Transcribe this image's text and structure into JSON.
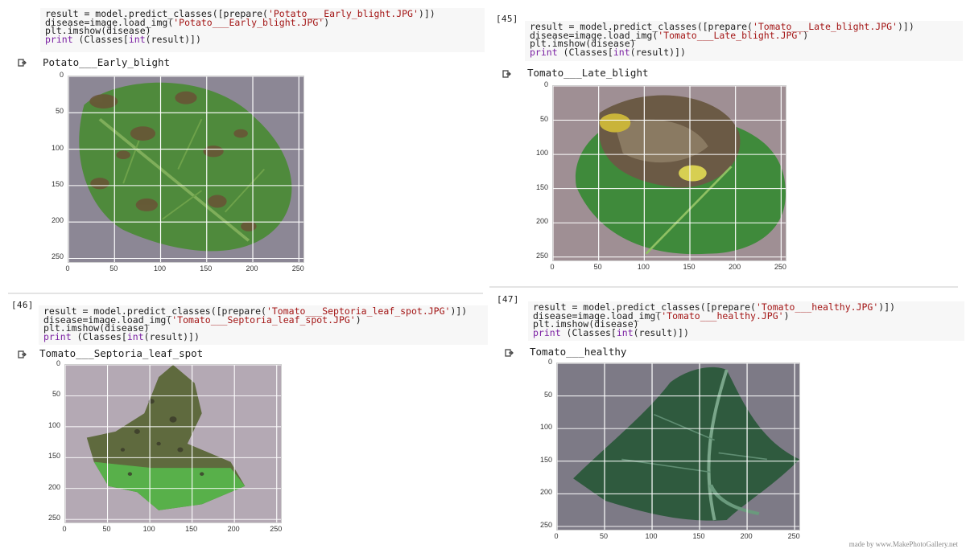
{
  "cells": [
    {
      "prompt": "",
      "code": [
        [
          {
            "t": "result = model.predict_classes([prepare("
          },
          {
            "t": "'Potato___Early_blight.JPG'",
            "c": "s"
          },
          {
            "t": ")])"
          }
        ],
        [
          {
            "t": "disease=image.load_img("
          },
          {
            "t": "'Potato___Early_blight.JPG'",
            "c": "s"
          },
          {
            "t": ")"
          }
        ],
        [
          {
            "t": "plt.imshow(disease)"
          }
        ],
        [
          {
            "t": "print",
            "c": "k"
          },
          {
            "t": " (Classes["
          },
          {
            "t": "int",
            "c": "k"
          },
          {
            "t": "(result)])"
          }
        ]
      ],
      "output": "Potato___Early_blight",
      "leaf": "potato-early-blight"
    },
    {
      "prompt": "[45]",
      "code": [
        [
          {
            "t": "result = model.predict_classes([prepare("
          },
          {
            "t": "'Tomato___Late_blight.JPG'",
            "c": "s"
          },
          {
            "t": ")])"
          }
        ],
        [
          {
            "t": "disease=image.load_img("
          },
          {
            "t": "'Tomato___Late_blight.JPG'",
            "c": "s"
          },
          {
            "t": ")"
          }
        ],
        [
          {
            "t": "plt.imshow(disease)"
          }
        ],
        [
          {
            "t": "print",
            "c": "k"
          },
          {
            "t": " (Classes["
          },
          {
            "t": "int",
            "c": "k"
          },
          {
            "t": "(result)])"
          }
        ]
      ],
      "output": "Tomato___Late_blight",
      "leaf": "tomato-late-blight"
    },
    {
      "prompt": "[46]",
      "code": [
        [
          {
            "t": "result = model.predict_classes([prepare("
          },
          {
            "t": "'Tomato___Septoria_leaf_spot.JPG'",
            "c": "s"
          },
          {
            "t": ")])"
          }
        ],
        [
          {
            "t": "disease=image.load_img("
          },
          {
            "t": "'Tomato___Septoria_leaf_spot.JPG'",
            "c": "s"
          },
          {
            "t": ")"
          }
        ],
        [
          {
            "t": "plt.imshow(disease)"
          }
        ],
        [
          {
            "t": "print",
            "c": "k"
          },
          {
            "t": " (Classes["
          },
          {
            "t": "int",
            "c": "k"
          },
          {
            "t": "(result)])"
          }
        ]
      ],
      "output": "Tomato___Septoria_leaf_spot",
      "leaf": "tomato-septoria-leaf-spot"
    },
    {
      "prompt": "[47]",
      "code": [
        [
          {
            "t": "result = model.predict_classes([prepare("
          },
          {
            "t": "'Tomato___healthy.JPG'",
            "c": "s"
          },
          {
            "t": ")])"
          }
        ],
        [
          {
            "t": "disease=image.load_img("
          },
          {
            "t": "'Tomato___healthy.JPG'",
            "c": "s"
          },
          {
            "t": ")"
          }
        ],
        [
          {
            "t": "plt.imshow(disease)"
          }
        ],
        [
          {
            "t": "print",
            "c": "k"
          },
          {
            "t": " (Classes["
          },
          {
            "t": "int",
            "c": "k"
          },
          {
            "t": "(result)])"
          }
        ]
      ],
      "output": "Tomato___healthy",
      "leaf": "tomato-healthy"
    }
  ],
  "axis_ticks": {
    "y": [
      "0",
      "50",
      "100",
      "150",
      "200",
      "250"
    ],
    "x": [
      "0",
      "50",
      "100",
      "150",
      "200",
      "250"
    ]
  },
  "colors": {
    "code_bg": "#f7f7f7",
    "string": "#a31515",
    "keyword": "#7a1fa2",
    "grid": "#ffffff"
  },
  "icons": {
    "output": "output-arrow-icon"
  },
  "watermark": "made by www.MakePhotoGallery.net"
}
